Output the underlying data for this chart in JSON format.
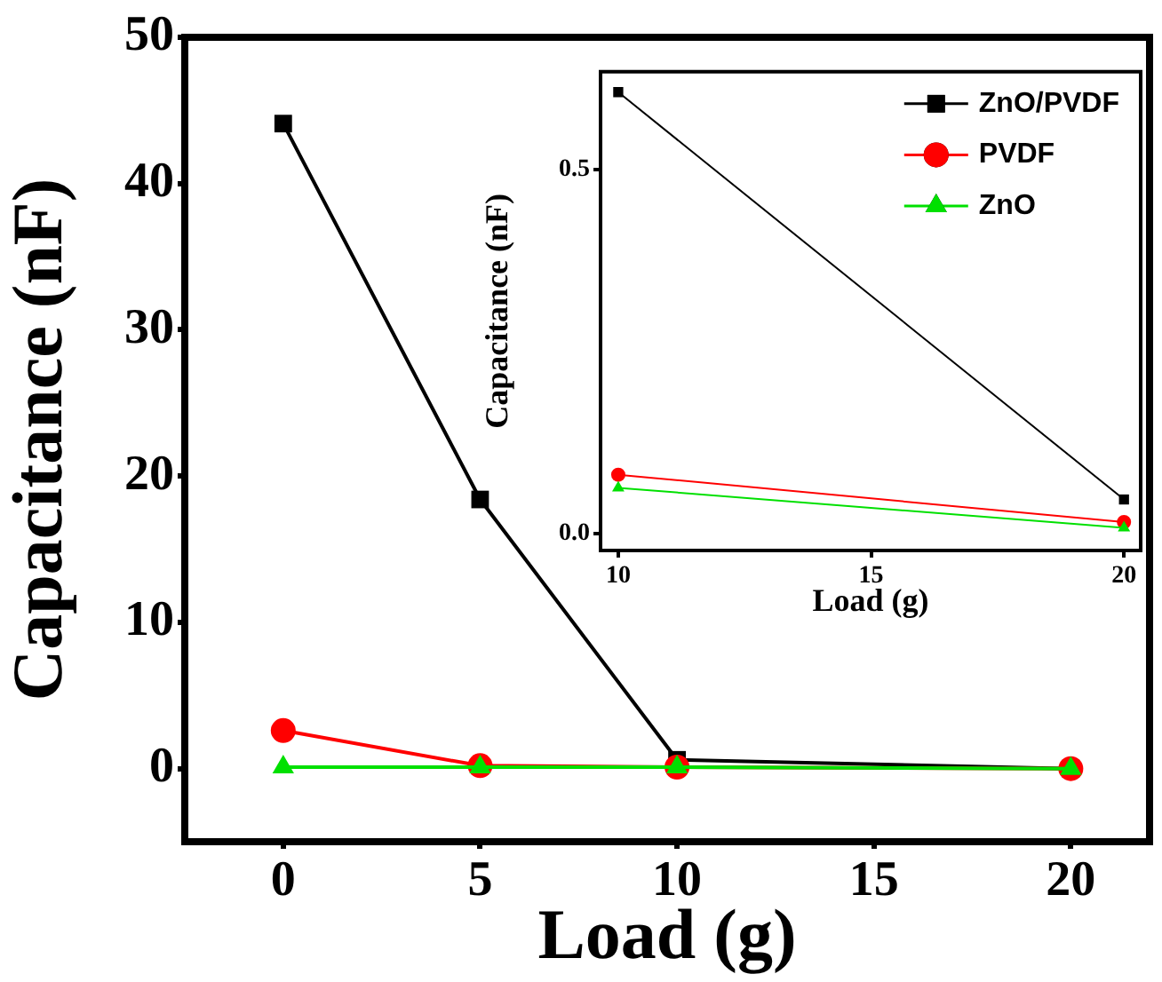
{
  "chart_data": [
    {
      "type": "line",
      "xlabel": "Load (g)",
      "ylabel": "Capacitance (nF)",
      "x": [
        0,
        5,
        10,
        20
      ],
      "xlim": [
        -2.5,
        22
      ],
      "xticks": [
        0,
        5,
        10,
        15,
        20
      ],
      "ylim": [
        -5,
        50
      ],
      "yticks": [
        0,
        10,
        20,
        30,
        40,
        50
      ],
      "grid": false,
      "legend": false,
      "line_style": "solid",
      "series": [
        {
          "color": "#000000",
          "marker": "square",
          "values": [
            44.1,
            18.4,
            0.6,
            0.0
          ]
        },
        {
          "color": "#ff0000",
          "marker": "circle",
          "values": [
            2.6,
            0.2,
            0.1,
            0.0
          ]
        },
        {
          "color": "#00e000",
          "marker": "triangle",
          "values": [
            0.1,
            0.1,
            0.1,
            0.0
          ]
        }
      ]
    },
    {
      "type": "line",
      "xlabel": "Load (g)",
      "ylabel": "Capacitance (nF)",
      "x": [
        10,
        20
      ],
      "xlim": [
        9.65,
        20.33
      ],
      "xticks": [
        10,
        15,
        20
      ],
      "ylim": [
        -0.023,
        0.634
      ],
      "yticks": [
        {
          "value": 0,
          "label": "0.0"
        },
        {
          "value": 0.5,
          "label": "0.5"
        }
      ],
      "grid": false,
      "legend": "top right",
      "line_style": "solid",
      "series": [
        {
          "name": "ZnO/PVDF",
          "color": "#000000",
          "marker": "square",
          "values": [
            0.606,
            0.047
          ]
        },
        {
          "name": "PVDF",
          "color": "#ff0000",
          "marker": "circle",
          "values": [
            0.081,
            0.016
          ]
        },
        {
          "name": "ZnO",
          "color": "#00e000",
          "marker": "triangle",
          "values": [
            0.063,
            0.008
          ]
        }
      ]
    }
  ]
}
